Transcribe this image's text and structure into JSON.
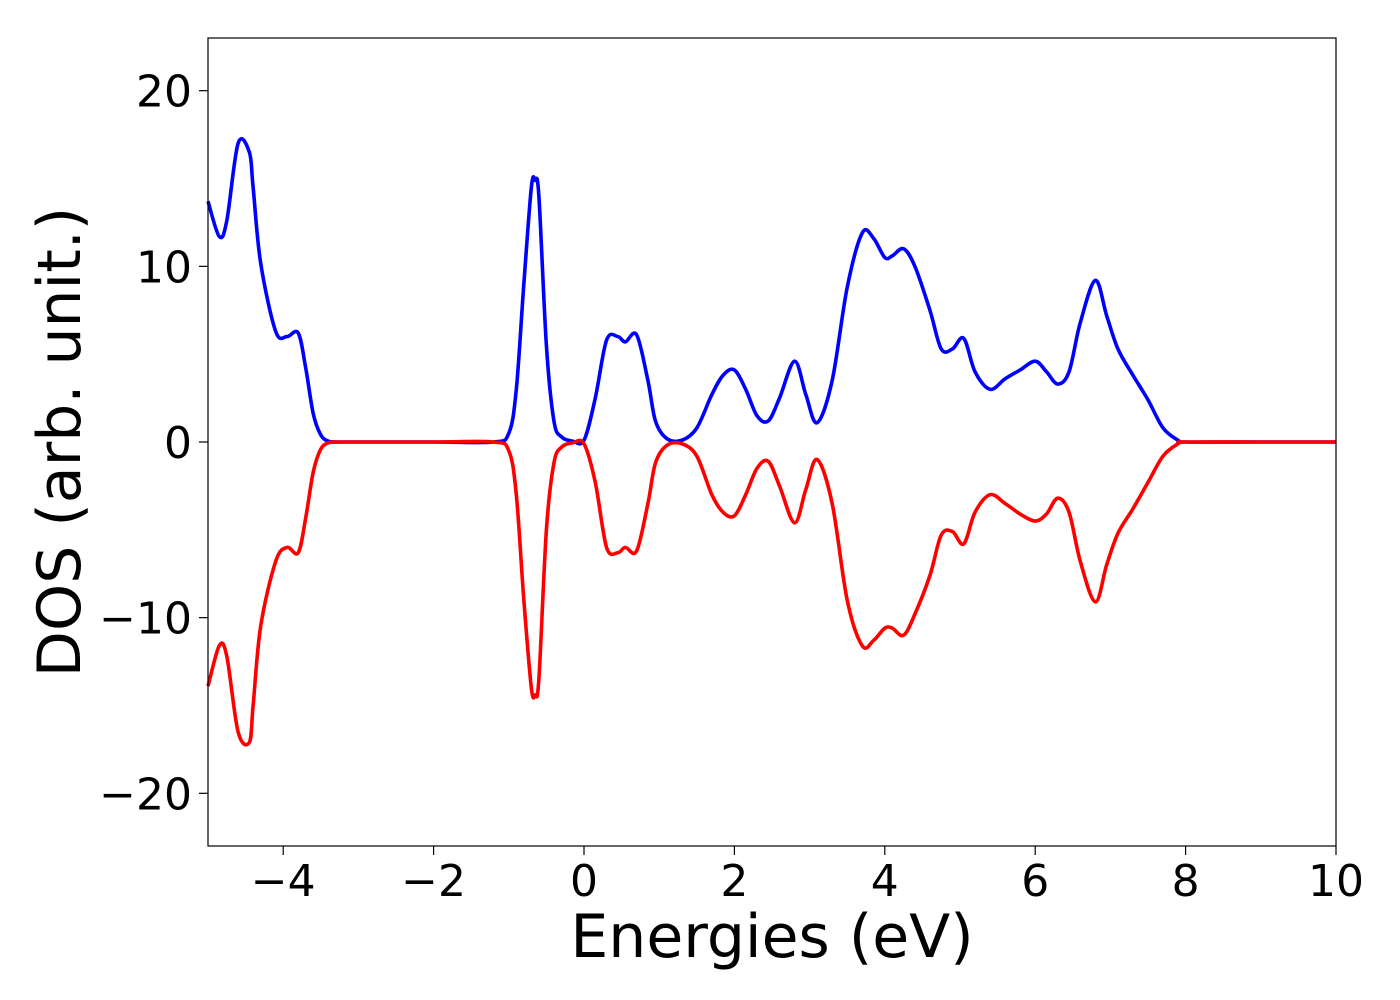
{
  "chart_data": {
    "type": "line",
    "title": "",
    "xlabel": "Energies (eV)",
    "ylabel": "DOS (arb. unit.)",
    "xlim": [
      -5,
      10
    ],
    "ylim": [
      -23,
      23
    ],
    "grid": false,
    "legend": "none",
    "x_ticks": [
      -4,
      -2,
      0,
      2,
      4,
      6,
      8,
      10
    ],
    "x_tick_labels": [
      "−4",
      "−2",
      "0",
      "2",
      "4",
      "6",
      "8",
      "10"
    ],
    "y_ticks": [
      20,
      10,
      0,
      -10,
      -20
    ],
    "y_tick_labels": [
      "20",
      "10",
      "0",
      "−10",
      "−20"
    ],
    "series": [
      {
        "color": "#0000ff",
        "x": [
          -5.0,
          -4.85,
          -4.75,
          -4.6,
          -4.45,
          -4.4,
          -4.3,
          -4.1,
          -3.95,
          -3.8,
          -3.7,
          -3.6,
          -3.5,
          -3.4,
          -3.3,
          -3.2,
          -2.0,
          -1.2,
          -1.0,
          -0.9,
          -0.8,
          -0.7,
          -0.65,
          -0.6,
          -0.5,
          -0.4,
          -0.3,
          -0.15,
          0.0,
          0.15,
          0.3,
          0.45,
          0.55,
          0.7,
          0.85,
          0.95,
          1.1,
          1.3,
          1.5,
          1.7,
          1.85,
          2.0,
          2.15,
          2.3,
          2.45,
          2.6,
          2.8,
          2.95,
          3.1,
          3.3,
          3.5,
          3.7,
          3.85,
          4.0,
          4.1,
          4.25,
          4.4,
          4.6,
          4.75,
          4.9,
          5.05,
          5.2,
          5.4,
          5.6,
          5.8,
          6.0,
          6.15,
          6.3,
          6.45,
          6.6,
          6.8,
          6.95,
          7.1,
          7.3,
          7.5,
          7.7,
          7.9,
          8.0,
          9.0,
          10.0
        ],
        "y": [
          13.7,
          11.7,
          12.6,
          17.0,
          16.5,
          14.5,
          10.2,
          6.3,
          6.0,
          6.2,
          4.2,
          1.6,
          0.4,
          0.05,
          0.0,
          0.0,
          0.0,
          0.0,
          0.5,
          3.0,
          9.0,
          14.5,
          14.9,
          14.0,
          5.5,
          1.2,
          0.3,
          0.05,
          0.1,
          2.5,
          5.8,
          6.0,
          5.7,
          6.1,
          3.5,
          1.2,
          0.2,
          0.1,
          0.8,
          2.7,
          3.8,
          4.1,
          3.0,
          1.5,
          1.2,
          2.5,
          4.6,
          2.7,
          1.1,
          3.5,
          8.8,
          11.9,
          11.6,
          10.5,
          10.6,
          11.0,
          10.0,
          7.5,
          5.3,
          5.3,
          5.9,
          4.0,
          3.0,
          3.6,
          4.1,
          4.6,
          4.0,
          3.3,
          4.0,
          6.8,
          9.2,
          7.2,
          5.3,
          3.8,
          2.4,
          0.8,
          0.1,
          0.0,
          0.0,
          0.0
        ]
      },
      {
        "color": "#ff0000",
        "x": [
          -5.0,
          -4.85,
          -4.75,
          -4.6,
          -4.45,
          -4.4,
          -4.3,
          -4.1,
          -3.95,
          -3.8,
          -3.7,
          -3.6,
          -3.5,
          -3.4,
          -3.3,
          -3.2,
          -2.0,
          -1.2,
          -1.0,
          -0.9,
          -0.8,
          -0.7,
          -0.65,
          -0.6,
          -0.5,
          -0.4,
          -0.3,
          -0.15,
          0.0,
          0.15,
          0.3,
          0.45,
          0.55,
          0.7,
          0.85,
          0.95,
          1.1,
          1.3,
          1.5,
          1.7,
          1.85,
          2.0,
          2.15,
          2.3,
          2.45,
          2.6,
          2.8,
          2.95,
          3.1,
          3.3,
          3.5,
          3.7,
          3.85,
          4.0,
          4.1,
          4.25,
          4.4,
          4.6,
          4.75,
          4.9,
          5.05,
          5.2,
          5.4,
          5.6,
          5.8,
          6.0,
          6.15,
          6.3,
          6.45,
          6.6,
          6.8,
          6.95,
          7.1,
          7.3,
          7.5,
          7.7,
          7.9,
          8.0,
          9.0,
          10.0
        ],
        "y": [
          -13.9,
          -11.6,
          -12.2,
          -16.5,
          -17.1,
          -15.0,
          -10.5,
          -6.8,
          -6.0,
          -6.3,
          -4.3,
          -1.7,
          -0.4,
          -0.05,
          0.0,
          0.0,
          0.0,
          0.0,
          -0.5,
          -3.0,
          -9.0,
          -14.0,
          -14.4,
          -13.5,
          -5.0,
          -1.2,
          -0.3,
          -0.05,
          -0.1,
          -2.3,
          -6.0,
          -6.3,
          -6.0,
          -6.2,
          -3.5,
          -1.2,
          -0.2,
          -0.1,
          -0.8,
          -3.0,
          -4.0,
          -4.2,
          -3.0,
          -1.5,
          -1.1,
          -2.5,
          -4.6,
          -2.7,
          -1.0,
          -3.5,
          -9.0,
          -11.6,
          -11.3,
          -10.6,
          -10.6,
          -11.0,
          -9.8,
          -7.6,
          -5.3,
          -5.1,
          -5.8,
          -4.0,
          -3.0,
          -3.5,
          -4.1,
          -4.5,
          -4.1,
          -3.2,
          -4.0,
          -6.8,
          -9.1,
          -7.0,
          -5.2,
          -3.8,
          -2.3,
          -0.8,
          -0.1,
          0.0,
          0.0,
          0.0
        ]
      }
    ]
  }
}
